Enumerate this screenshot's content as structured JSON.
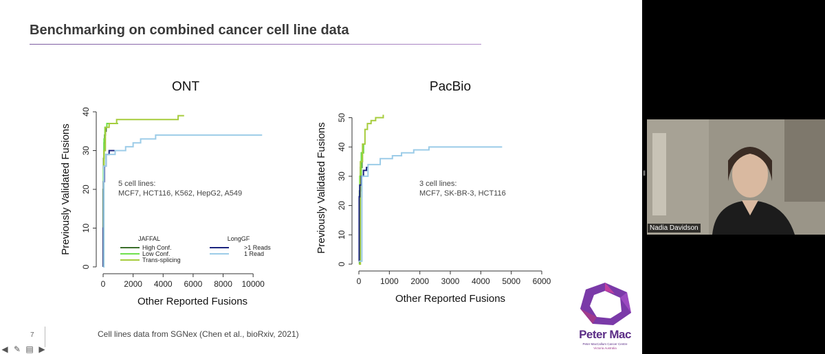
{
  "slide": {
    "title": "Benchmarking on combined cancer cell line data",
    "footnote": "Cell lines data from SGNex (Chen et al., bioRxiv, 2021)",
    "slide_number": "7"
  },
  "logo": {
    "name": "Peter Mac",
    "line1": "Peter MacCallum Cancer Centre",
    "line2": "Victoria Australia",
    "color": "#5b2d86"
  },
  "video": {
    "participant_name": "Nadia Davidson"
  },
  "chart_data": [
    {
      "type": "line",
      "title": "ONT",
      "xlabel": "Other Reported Fusions",
      "ylabel": "Previously Validated Fusions",
      "xlim": [
        0,
        11000
      ],
      "ylim": [
        0,
        40
      ],
      "xticks": [
        0,
        2000,
        4000,
        6000,
        8000,
        10000
      ],
      "yticks": [
        0,
        10,
        20,
        30,
        40
      ],
      "annotation": [
        "5 cell lines:",
        "MCF7, HCT116, K562, HepG2, A549"
      ],
      "legend_groups": [
        {
          "title": "JAFFAL",
          "entries": [
            "High Conf.",
            "Low Conf.",
            "Trans-splicing"
          ]
        },
        {
          "title": "LongGF",
          "entries": [
            ">1 Reads",
            "1 Read"
          ]
        }
      ],
      "series": [
        {
          "name": "High Conf.",
          "color": "#3a6e2a",
          "x": [
            0,
            10,
            30,
            60,
            100,
            150,
            200
          ],
          "y": [
            0,
            20,
            28,
            32,
            34,
            35,
            36
          ]
        },
        {
          "name": "Low Conf.",
          "color": "#6ee04a",
          "x": [
            0,
            20,
            60,
            120,
            250,
            400,
            700,
            1000
          ],
          "y": [
            0,
            25,
            33,
            36,
            37,
            37,
            37,
            37
          ]
        },
        {
          "name": "Trans-splicing",
          "color": "#a6cc3c",
          "x": [
            0,
            50,
            150,
            400,
            900,
            1500,
            3000,
            4500,
            5000,
            5400
          ],
          "y": [
            0,
            30,
            36,
            37,
            38,
            38,
            38,
            38,
            39,
            39
          ]
        },
        {
          "name": ">1 Reads",
          "color": "#1a237e",
          "x": [
            0,
            10,
            30,
            80,
            200,
            400,
            800,
            1000
          ],
          "y": [
            0,
            10,
            22,
            26,
            29,
            30,
            30,
            30
          ]
        },
        {
          "name": "1 Read",
          "color": "#9ccce8",
          "x": [
            0,
            50,
            200,
            800,
            1500,
            2000,
            2500,
            3000,
            3500,
            5000,
            8000,
            10600
          ],
          "y": [
            0,
            26,
            29,
            30,
            31,
            32,
            33,
            33,
            34,
            34,
            34,
            34
          ]
        }
      ]
    },
    {
      "type": "line",
      "title": "PacBio",
      "xlabel": "Other Reported Fusions",
      "ylabel": "Previously Validated Fusions",
      "xlim": [
        0,
        6000
      ],
      "ylim": [
        0,
        52
      ],
      "xticks": [
        0,
        1000,
        2000,
        3000,
        4000,
        5000,
        6000
      ],
      "yticks": [
        0,
        10,
        20,
        30,
        40,
        50
      ],
      "annotation": [
        "3 cell lines:",
        "MCF7, SK-BR-3, HCT116"
      ],
      "series": [
        {
          "name": "High Conf.",
          "color": "#3a6e2a",
          "x": [
            0,
            20,
            50,
            100,
            150
          ],
          "y": [
            0,
            25,
            33,
            38,
            41
          ]
        },
        {
          "name": "Low Conf.",
          "color": "#6ee04a",
          "x": [
            0,
            30,
            80,
            150,
            200
          ],
          "y": [
            0,
            30,
            38,
            41,
            41
          ]
        },
        {
          "name": "Trans-splicing",
          "color": "#a6cc3c",
          "x": [
            0,
            50,
            120,
            200,
            280,
            400,
            550,
            700,
            800
          ],
          "y": [
            0,
            35,
            41,
            46,
            48,
            49,
            50,
            50,
            51
          ]
        },
        {
          "name": ">1 Reads",
          "color": "#1a237e",
          "x": [
            0,
            10,
            30,
            80,
            150,
            250,
            300
          ],
          "y": [
            1,
            23,
            27,
            30,
            32,
            33,
            33
          ]
        },
        {
          "name": "1 Read",
          "color": "#9ccce8",
          "x": [
            0,
            100,
            300,
            700,
            1100,
            1400,
            1800,
            2300,
            3000,
            4000,
            4700
          ],
          "y": [
            1,
            30,
            34,
            36,
            37,
            38,
            39,
            40,
            40,
            40,
            40
          ]
        }
      ]
    }
  ]
}
